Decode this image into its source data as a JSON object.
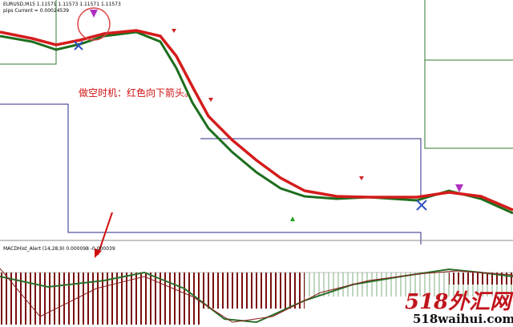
{
  "header": {
    "symbol_line": "EURUSD,M15  1.11571 1.11573 1.11571 1.11573",
    "indicator_line": "pips Current = 0.00024539"
  },
  "annotation": "做空时机：红色向下箭头。",
  "macd_panel": {
    "label": "MACDHist_Alert (14,28,9) 0.000098 -0.000039"
  },
  "watermark": {
    "title": "518外汇网",
    "url": "518waihui.com"
  }
}
